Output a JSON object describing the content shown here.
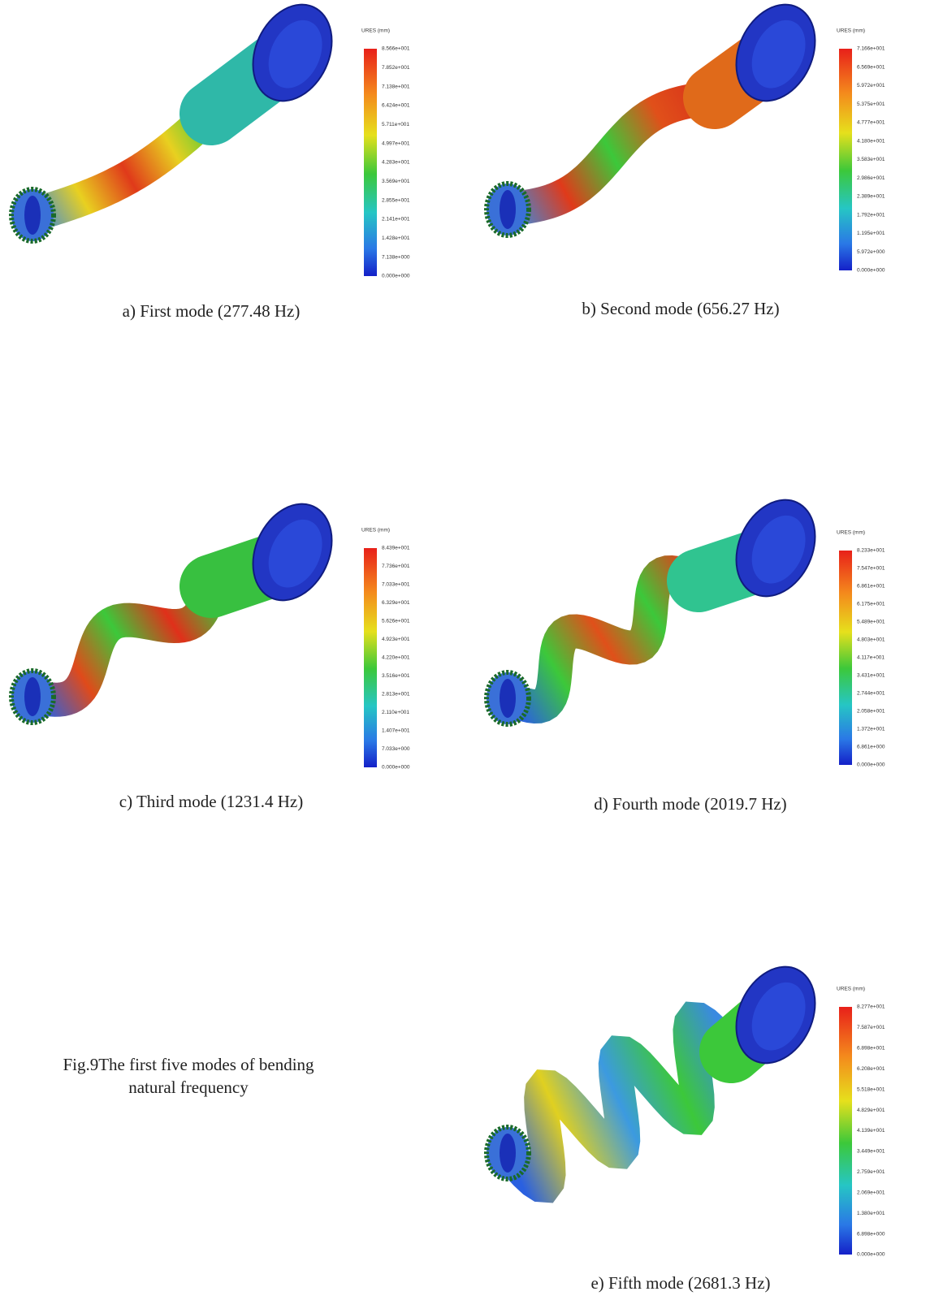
{
  "panels": [
    {
      "caption": "a) First mode (277.48 Hz)",
      "legend": {
        "title": "URES (mm)",
        "labels": [
          "8.566e+001",
          "7.852e+001",
          "7.138e+001",
          "6.424e+001",
          "5.711e+001",
          "4.997e+001",
          "4.283e+001",
          "3.569e+001",
          "2.855e+001",
          "2.141e+001",
          "1.428e+001",
          "7.138e+000",
          "0.000e+000"
        ]
      }
    },
    {
      "caption": "b) Second mode (656.27 Hz)",
      "legend": {
        "title": "URES (mm)",
        "labels": [
          "7.166e+001",
          "6.569e+001",
          "5.972e+001",
          "5.375e+001",
          "4.777e+001",
          "4.180e+001",
          "3.583e+001",
          "2.986e+001",
          "2.389e+001",
          "1.792e+001",
          "1.195e+001",
          "5.972e+000",
          "0.000e+000"
        ]
      }
    },
    {
      "caption": "c) Third mode (1231.4 Hz)",
      "legend": {
        "title": "URES (mm)",
        "labels": [
          "8.439e+001",
          "7.736e+001",
          "7.033e+001",
          "6.329e+001",
          "5.626e+001",
          "4.923e+001",
          "4.220e+001",
          "3.516e+001",
          "2.813e+001",
          "2.110e+001",
          "1.407e+001",
          "7.033e+000",
          "0.000e+000"
        ]
      }
    },
    {
      "caption": "d) Fourth mode   (2019.7 Hz)",
      "legend": {
        "title": "URES (mm)",
        "labels": [
          "8.233e+001",
          "7.547e+001",
          "6.861e+001",
          "6.175e+001",
          "5.489e+001",
          "4.803e+001",
          "4.117e+001",
          "3.431e+001",
          "2.744e+001",
          "2.058e+001",
          "1.372e+001",
          "6.861e+000",
          "0.000e+000"
        ]
      }
    },
    {
      "caption": "e) Fifth mode (2681.3 Hz)",
      "legend": {
        "title": "URES (mm)",
        "labels": [
          "8.277e+001",
          "7.587e+001",
          "6.898e+001",
          "6.208e+001",
          "5.518e+001",
          "4.829e+001",
          "4.139e+001",
          "3.449e+001",
          "2.759e+001",
          "2.069e+001",
          "1.380e+001",
          "6.898e+000",
          "0.000e+000"
        ]
      }
    }
  ],
  "figure_caption": [
    "Fig.9The first five modes of bending",
    "natural frequency"
  ]
}
